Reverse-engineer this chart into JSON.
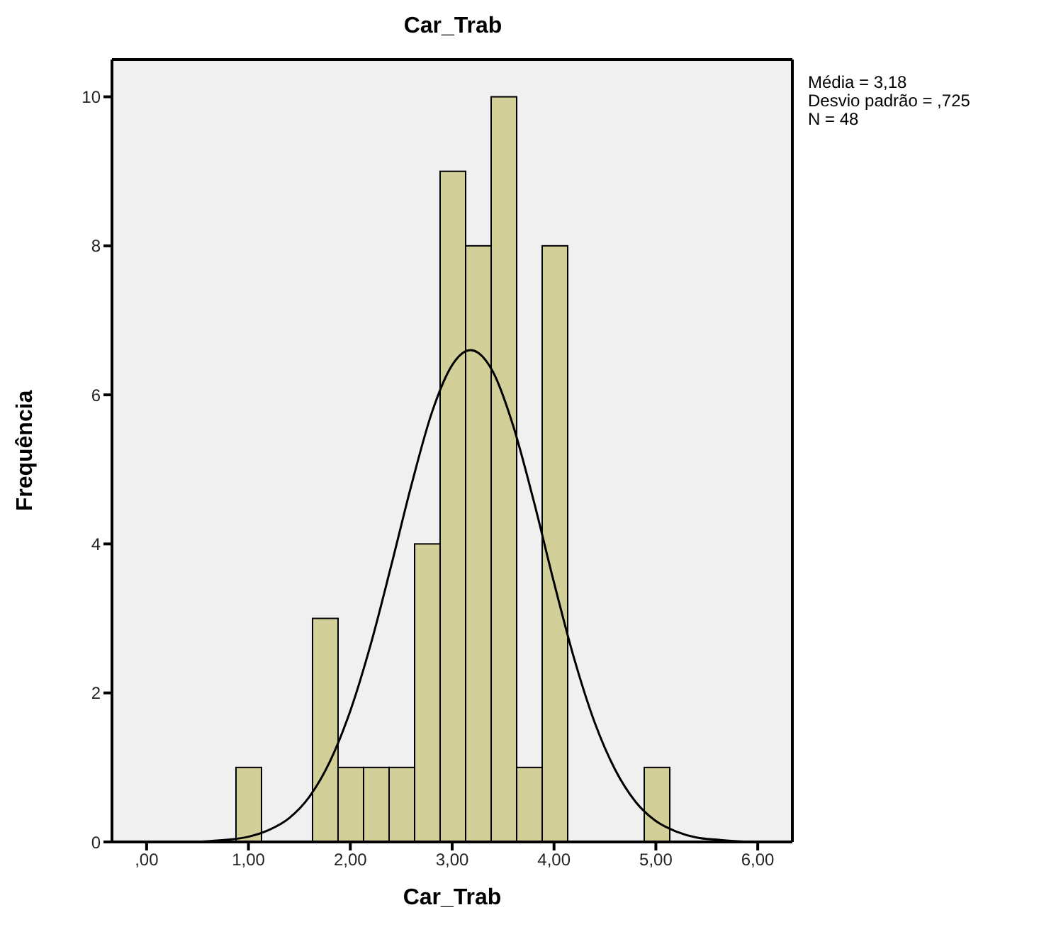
{
  "chart_data": {
    "type": "histogram",
    "title": "Car_Trab",
    "xlabel": "Car_Trab",
    "ylabel": "Frequência",
    "bins": [
      0.875,
      1.125,
      1.375,
      1.625,
      1.875,
      2.125,
      2.375,
      2.625,
      2.875,
      3.125,
      3.375,
      3.625,
      3.875,
      4.125,
      4.375,
      4.625,
      4.875,
      5.125
    ],
    "values": [
      1,
      0,
      0,
      3,
      1,
      1,
      1,
      4,
      9,
      8,
      10,
      1,
      8,
      0,
      0,
      0,
      1
    ],
    "color": "#d3cf98",
    "series": [
      {
        "type": "line",
        "color": "#000000",
        "x": [
          0,
          0.2,
          0.4,
          0.6,
          0.8,
          1.0,
          1.2,
          1.4,
          1.6,
          1.8,
          2.0,
          2.2,
          2.4,
          2.6,
          2.8,
          3.0,
          3.18,
          3.4,
          3.6,
          3.8,
          4.0,
          4.2,
          4.4,
          4.6,
          4.8,
          5.0,
          5.2,
          5.4,
          5.6,
          5.8,
          6.0,
          6.2
        ],
        "values": [
          0,
          0,
          0,
          0.01,
          0.03,
          0.07,
          0.16,
          0.32,
          0.61,
          1.08,
          1.76,
          2.65,
          3.7,
          4.79,
          5.76,
          6.4,
          6.6,
          6.31,
          5.58,
          4.58,
          3.48,
          2.45,
          1.6,
          0.97,
          0.54,
          0.28,
          0.14,
          0.06,
          0.03,
          0.01,
          0,
          0
        ]
      }
    ],
    "xlim": [
      -0.34,
      6.34
    ],
    "ylim": [
      0,
      10.5
    ],
    "xticks": [
      {
        "value": 0,
        "label": ",00"
      },
      {
        "value": 1,
        "label": "1,00"
      },
      {
        "value": 2,
        "label": "2,00"
      },
      {
        "value": 3,
        "label": "3,00"
      },
      {
        "value": 4,
        "label": "4,00"
      },
      {
        "value": 5,
        "label": "5,00"
      },
      {
        "value": 6,
        "label": "6,00"
      }
    ],
    "yticks": [
      0,
      2,
      4,
      6,
      8,
      10
    ],
    "annotations": [
      "Média = 3,18",
      "Desvio padrão = ,725",
      "N = 48"
    ]
  }
}
